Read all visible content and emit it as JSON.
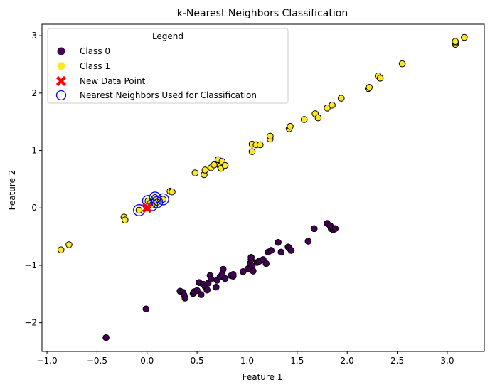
{
  "chart_data": {
    "type": "scatter",
    "title": "k-Nearest Neighbors Classification",
    "xlabel": "Feature 1",
    "ylabel": "Feature 2",
    "xlim": [
      -1.05,
      3.37
    ],
    "ylim": [
      -2.5,
      3.2
    ],
    "xticks": [
      -1.0,
      -0.5,
      0.0,
      0.5,
      1.0,
      1.5,
      2.0,
      2.5,
      3.0
    ],
    "xtick_labels": [
      "−1.0",
      "−0.5",
      "0.0",
      "0.5",
      "1.0",
      "1.5",
      "2.0",
      "2.5",
      "3.0"
    ],
    "yticks": [
      -2,
      -1,
      0,
      1,
      2,
      3
    ],
    "ytick_labels": [
      "−2",
      "−1",
      "0",
      "1",
      "2",
      "3"
    ],
    "grid": false,
    "legend": {
      "title": "Legend",
      "placement": "top-left",
      "entries": [
        "Class 0",
        "Class 1",
        "New Data Point",
        "Nearest Neighbors Used for Classification"
      ]
    },
    "colors": {
      "class0": "#440154",
      "class1": "#fde725",
      "new_point": "#ff0000",
      "neighbors": "#0000ff"
    },
    "series": [
      {
        "name": "Class 0",
        "points": [
          [
            -0.41,
            -2.26
          ],
          [
            -0.01,
            -1.76
          ],
          [
            0.33,
            -1.45
          ],
          [
            0.36,
            -1.47
          ],
          [
            0.37,
            -1.52
          ],
          [
            0.38,
            -1.57
          ],
          [
            0.46,
            -1.49
          ],
          [
            0.47,
            -1.46
          ],
          [
            0.5,
            -1.44
          ],
          [
            0.52,
            -1.3
          ],
          [
            0.54,
            -1.51
          ],
          [
            0.56,
            -1.33
          ],
          [
            0.58,
            -1.37
          ],
          [
            0.6,
            -1.43
          ],
          [
            0.61,
            -1.31
          ],
          [
            0.63,
            -1.18
          ],
          [
            0.64,
            -1.24
          ],
          [
            0.69,
            -1.38
          ],
          [
            0.7,
            -1.26
          ],
          [
            0.73,
            -1.2
          ],
          [
            0.75,
            -1.16
          ],
          [
            0.76,
            -1.07
          ],
          [
            0.78,
            -1.23
          ],
          [
            0.84,
            -1.18
          ],
          [
            0.86,
            -1.19
          ],
          [
            0.86,
            -1.16
          ],
          [
            0.96,
            -1.11
          ],
          [
            1.01,
            -1.06
          ],
          [
            1.03,
            -0.97
          ],
          [
            1.04,
            -0.9
          ],
          [
            1.05,
            -1.01
          ],
          [
            1.06,
            -1.1
          ],
          [
            1.1,
            -0.95
          ],
          [
            1.12,
            -0.93
          ],
          [
            1.16,
            -0.9
          ],
          [
            1.19,
            -0.97
          ],
          [
            1.21,
            -0.77
          ],
          [
            1.24,
            -0.74
          ],
          [
            1.31,
            -0.6
          ],
          [
            1.34,
            -0.77
          ],
          [
            1.41,
            -0.68
          ],
          [
            1.42,
            -0.7
          ],
          [
            1.44,
            -0.74
          ],
          [
            1.61,
            -0.58
          ],
          [
            1.67,
            -0.36
          ],
          [
            1.8,
            -0.27
          ],
          [
            1.83,
            -0.31
          ],
          [
            1.84,
            -0.36
          ],
          [
            1.86,
            -0.38
          ],
          [
            1.88,
            -0.36
          ],
          [
            1.04,
            -0.86
          ]
        ]
      },
      {
        "name": "Class 1",
        "points": [
          [
            -0.86,
            -0.73
          ],
          [
            -0.78,
            -0.64
          ],
          [
            -0.23,
            -0.16
          ],
          [
            -0.22,
            -0.21
          ],
          [
            -0.08,
            -0.04
          ],
          [
            0.01,
            0.12
          ],
          [
            0.05,
            0.05
          ],
          [
            0.08,
            0.18
          ],
          [
            0.1,
            0.1
          ],
          [
            0.16,
            0.15
          ],
          [
            0.23,
            0.29
          ],
          [
            0.25,
            0.28
          ],
          [
            0.48,
            0.61
          ],
          [
            0.57,
            0.58
          ],
          [
            0.58,
            0.66
          ],
          [
            0.64,
            0.7
          ],
          [
            0.67,
            0.75
          ],
          [
            0.71,
            0.84
          ],
          [
            0.73,
            0.73
          ],
          [
            0.74,
            0.69
          ],
          [
            0.75,
            0.81
          ],
          [
            0.78,
            0.74
          ],
          [
            1.05,
            1.11
          ],
          [
            1.05,
            0.98
          ],
          [
            1.09,
            1.1
          ],
          [
            1.13,
            1.1
          ],
          [
            1.23,
            1.2
          ],
          [
            1.23,
            1.25
          ],
          [
            1.42,
            1.38
          ],
          [
            1.43,
            1.42
          ],
          [
            1.57,
            1.54
          ],
          [
            1.68,
            1.64
          ],
          [
            1.71,
            1.57
          ],
          [
            1.8,
            1.74
          ],
          [
            1.85,
            1.79
          ],
          [
            1.94,
            1.91
          ],
          [
            2.21,
            2.08
          ],
          [
            2.22,
            2.1
          ],
          [
            2.31,
            2.3
          ],
          [
            2.33,
            2.26
          ],
          [
            2.55,
            2.51
          ],
          [
            3.08,
            2.85
          ],
          [
            3.08,
            2.88
          ],
          [
            3.08,
            2.9
          ],
          [
            3.17,
            2.97
          ]
        ]
      },
      {
        "name": "New Data Point",
        "points": [
          [
            0.0,
            0.0
          ]
        ]
      },
      {
        "name": "Nearest Neighbors Used for Classification",
        "points": [
          [
            -0.08,
            -0.04
          ],
          [
            0.01,
            0.12
          ],
          [
            0.05,
            0.05
          ],
          [
            0.08,
            0.18
          ],
          [
            0.1,
            0.1
          ],
          [
            0.16,
            0.15
          ]
        ]
      }
    ]
  }
}
